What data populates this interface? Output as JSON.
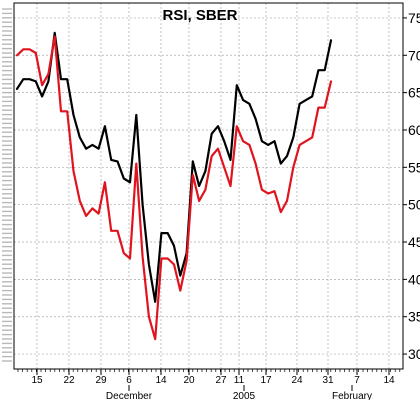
{
  "chart_data": {
    "type": "line",
    "title": "RSI, SBER",
    "ylim": [
      28,
      77
    ],
    "y_ticks": [
      30,
      35,
      40,
      45,
      50,
      55,
      60,
      65,
      70,
      75
    ],
    "day_ticks": [
      "15",
      "22",
      "29",
      "6",
      "14",
      "20",
      "27",
      "11",
      "17",
      "24",
      "31",
      "7",
      "14"
    ],
    "month_labels": [
      "December",
      "2005",
      "February"
    ],
    "grid": true,
    "colors": {
      "series_black": "#000000",
      "series_red": "#e0141e",
      "grid": "#aaaaaa"
    },
    "series": [
      {
        "color": "#000000",
        "values": [
          65.5,
          66.8,
          66.8,
          66.5,
          64.5,
          66.5,
          73.0,
          66.8,
          66.8,
          62.0,
          59.0,
          57.5,
          58.0,
          57.5,
          60.5,
          56.0,
          55.8,
          53.5,
          53.0,
          62.0,
          50.0,
          42.0,
          37.0,
          46.2,
          46.2,
          44.5,
          40.5,
          43.5,
          55.8,
          52.5,
          54.5,
          59.5,
          60.5,
          58.5,
          56.0,
          66.0,
          64.0,
          63.5,
          61.5,
          58.5,
          58.0,
          58.5,
          55.5,
          56.5,
          59.0,
          63.5,
          64.0,
          64.5,
          68.0,
          68.0,
          72.0
        ]
      },
      {
        "color": "#e0141e",
        "values": [
          70.0,
          70.8,
          70.8,
          70.3,
          66.0,
          67.5,
          72.5,
          62.5,
          62.5,
          54.5,
          50.5,
          48.5,
          49.5,
          48.8,
          53.0,
          46.5,
          46.5,
          43.5,
          42.8,
          55.5,
          43.0,
          35.0,
          32.0,
          42.8,
          42.8,
          42.0,
          38.5,
          42.5,
          54.0,
          50.5,
          52.0,
          56.5,
          57.5,
          55.0,
          52.5,
          60.5,
          58.5,
          58.0,
          55.5,
          52.0,
          51.5,
          51.8,
          49.0,
          50.5,
          55.0,
          58.0,
          58.5,
          59.0,
          63.0,
          63.0,
          66.5
        ]
      }
    ]
  }
}
